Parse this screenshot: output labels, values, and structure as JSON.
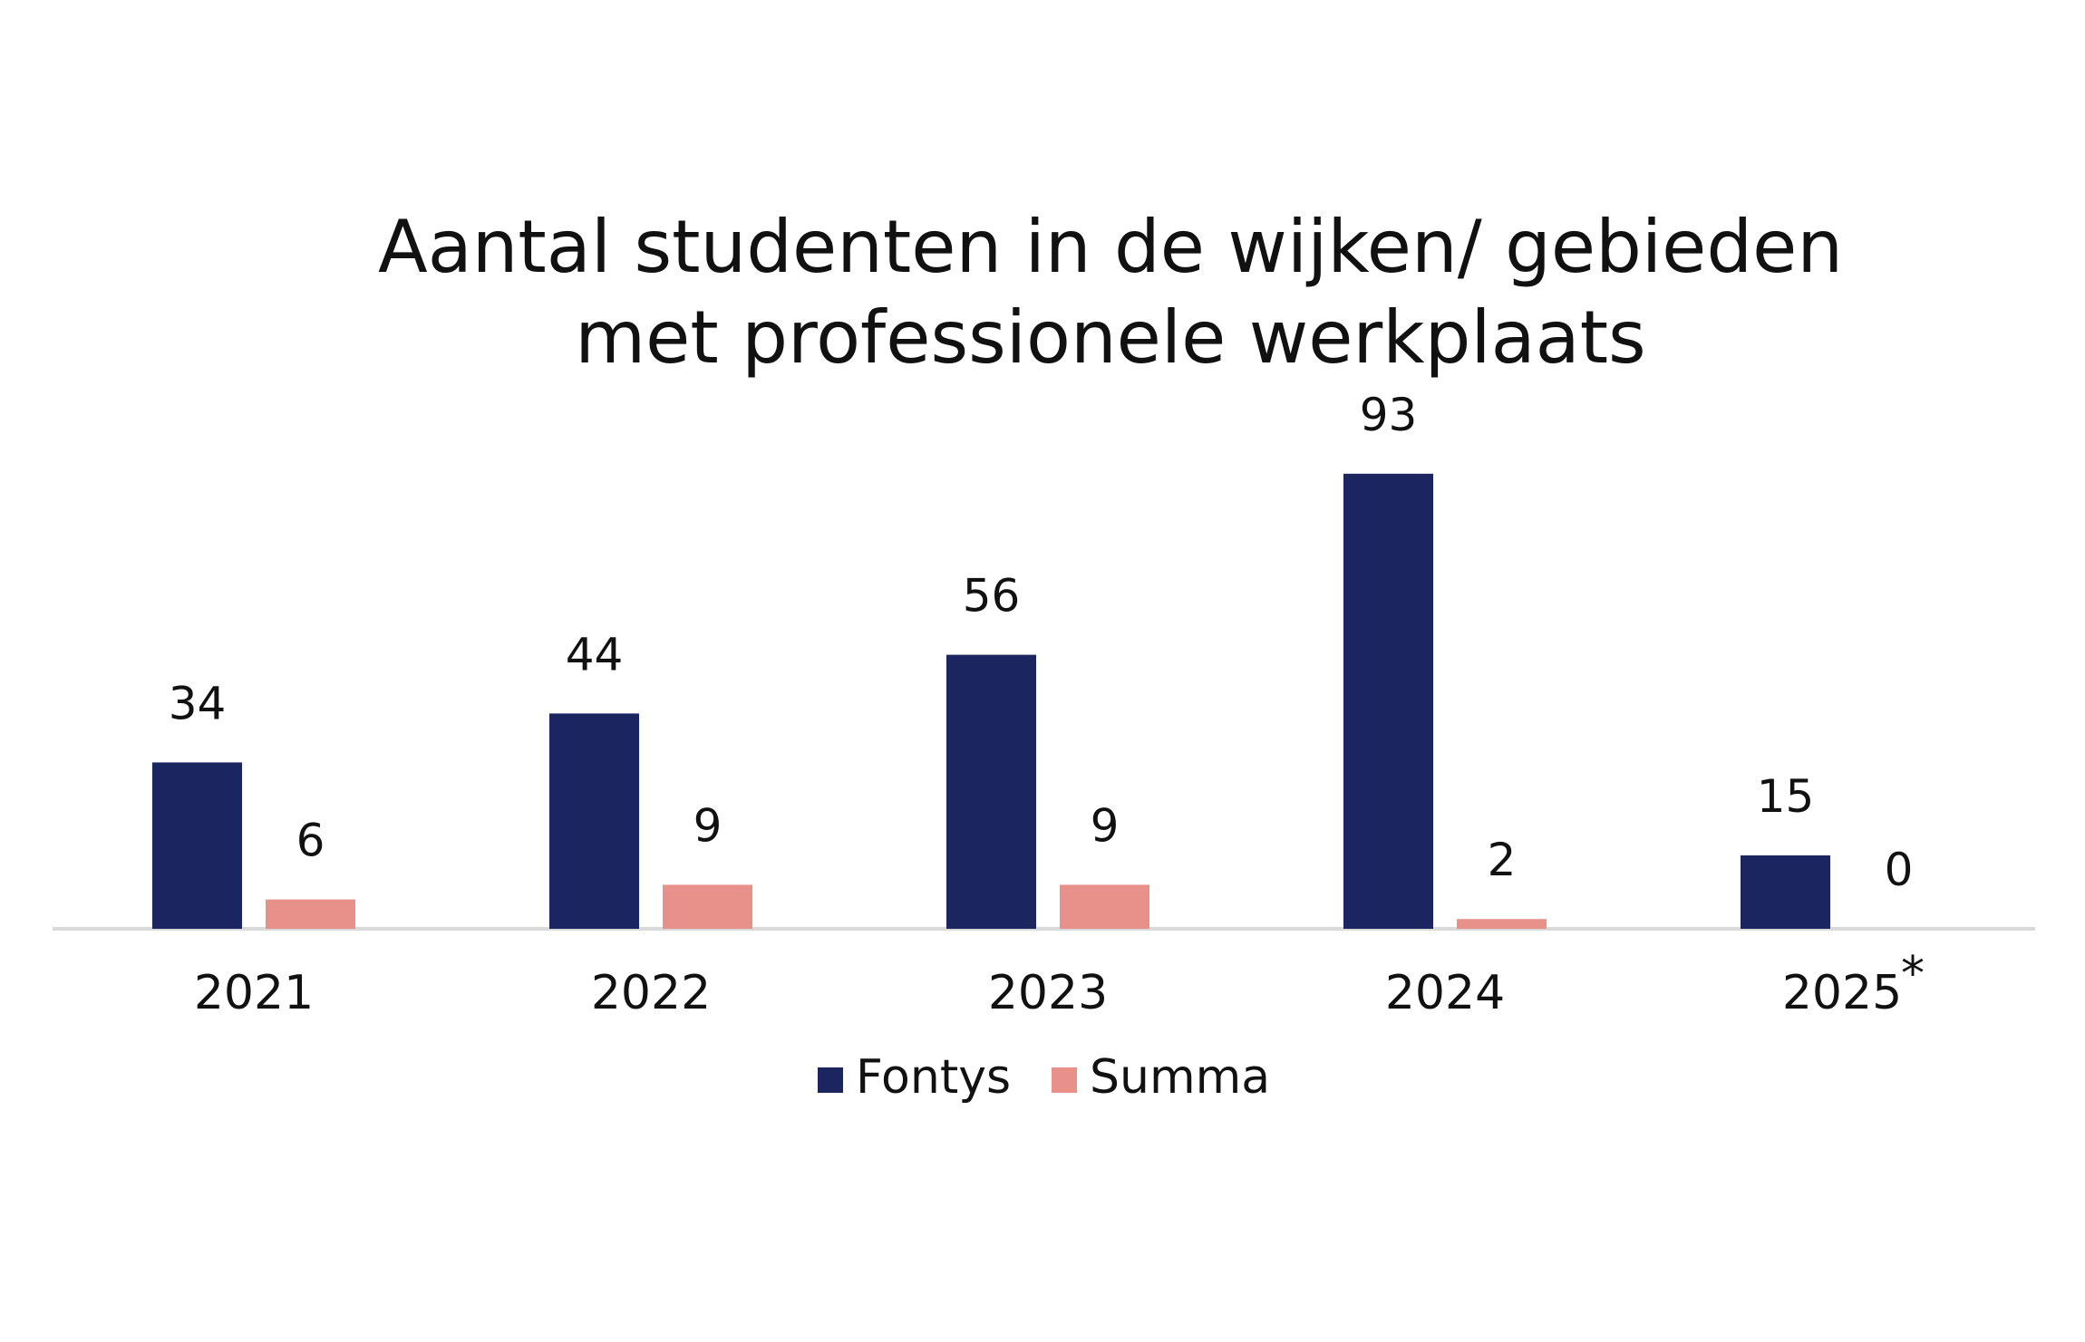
{
  "chart_data": {
    "type": "bar",
    "title": "Aantal studenten in de wijken/ gebieden met professionele werkplaats",
    "title_lines": [
      "Aantal studenten in de wijken/ gebieden",
      "met professionele werkplaats"
    ],
    "categories": [
      "2021",
      "2022",
      "2023",
      "2024",
      "2025"
    ],
    "category_notes": [
      "",
      "",
      "",
      "",
      "*"
    ],
    "series": [
      {
        "name": "Fontys",
        "color": "#1b2560",
        "values": [
          34,
          44,
          56,
          93,
          15
        ]
      },
      {
        "name": "Summa",
        "color": "#e8918b",
        "values": [
          6,
          9,
          9,
          2,
          0
        ]
      }
    ],
    "xlabel": "",
    "ylabel": "",
    "ylim": [
      0,
      100
    ],
    "grid": false,
    "y_axis_visible": false,
    "data_labels": true,
    "legend_position": "bottom-center",
    "axis_color": "#d9d9d9"
  }
}
